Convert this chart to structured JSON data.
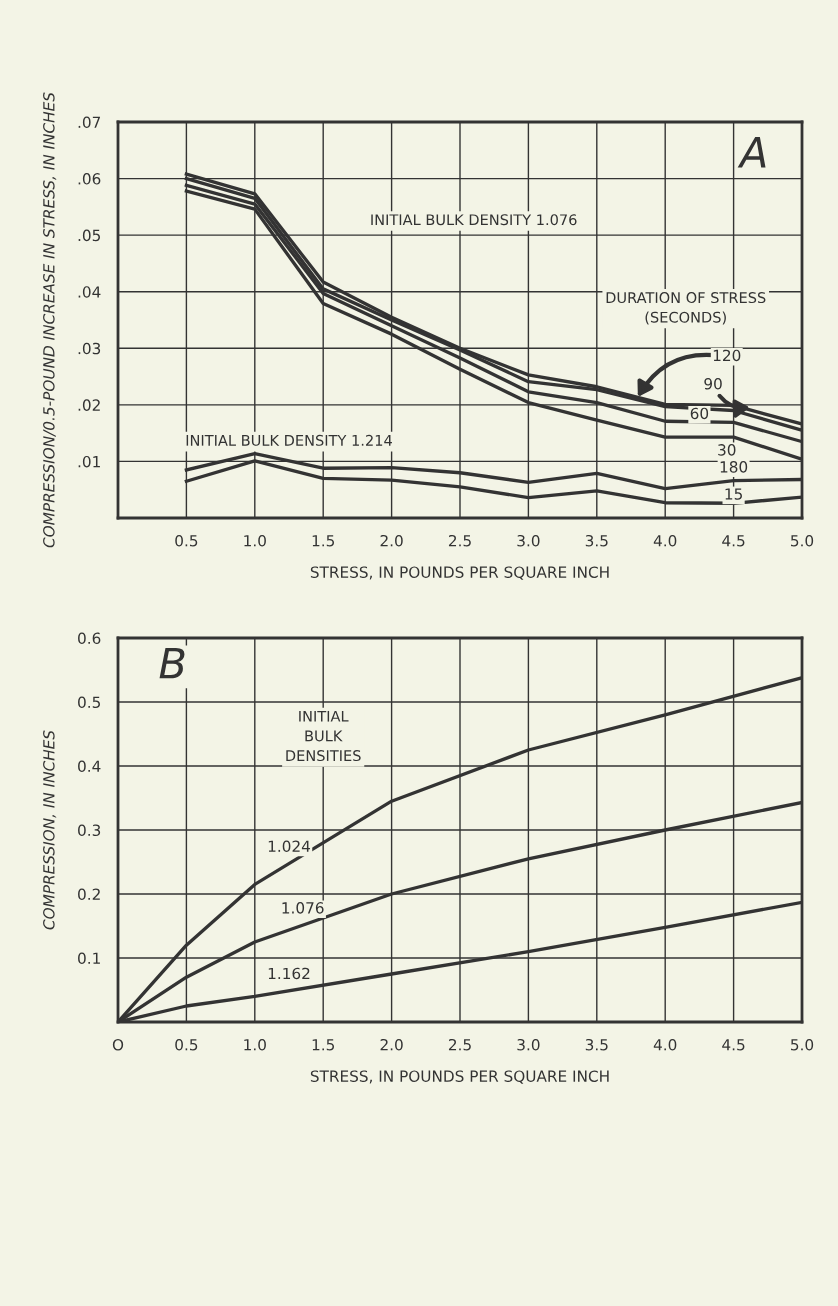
{
  "chart_data": [
    {
      "type": "line",
      "title": "A",
      "xlabel": "STRESS, IN POUNDS PER SQUARE INCH",
      "ylabel": "COMPRESSION/0.5-POUND INCREASE IN STRESS, IN INCHES",
      "x": [
        0.5,
        1.0,
        1.5,
        2.0,
        2.5,
        3.0,
        3.5,
        4.0,
        4.5,
        5.0
      ],
      "series": [
        {
          "name": "120",
          "color": "#333333",
          "values": [
            0.0608,
            0.0573,
            0.0417,
            0.0355,
            0.03,
            0.0253,
            0.0232,
            0.0201,
            0.0199,
            0.0166
          ]
        },
        {
          "name": "90",
          "color": "#333333",
          "values": [
            0.06,
            0.0565,
            0.0405,
            0.035,
            0.0297,
            0.0241,
            0.0227,
            0.0197,
            0.019,
            0.0155
          ]
        },
        {
          "name": "60",
          "color": "#333333",
          "values": [
            0.0588,
            0.0555,
            0.0397,
            0.034,
            0.0283,
            0.0223,
            0.0204,
            0.0171,
            0.0169,
            0.0135
          ]
        },
        {
          "name": "30",
          "color": "#333333",
          "values": [
            0.0578,
            0.0546,
            0.0379,
            0.0325,
            0.0263,
            0.0204,
            0.0173,
            0.0143,
            0.0143,
            0.0104
          ]
        },
        {
          "name": "180",
          "color": "#333333",
          "values": [
            0.0085,
            0.0114,
            0.0088,
            0.0089,
            0.008,
            0.0063,
            0.0079,
            0.0052,
            0.0066,
            0.0068
          ]
        },
        {
          "name": "15",
          "color": "#333333",
          "values": [
            0.0065,
            0.0101,
            0.007,
            0.0067,
            0.0055,
            0.0036,
            0.0048,
            0.0027,
            0.0026,
            0.0037
          ]
        }
      ],
      "annotations": [
        "INITIAL BULK DENSITY 1.076",
        "INITIAL BULK DENSITY 1.214",
        "DURATION OF STRESS\n(SECONDS)"
      ],
      "xlim": [
        0,
        5.0
      ],
      "ylim": [
        0,
        0.07
      ],
      "xticks": [
        {
          "value": 0.5,
          "label": "0.5"
        },
        {
          "value": 1.0,
          "label": "1.0"
        },
        {
          "value": 1.5,
          "label": "1.5"
        },
        {
          "value": 2.0,
          "label": "2.0"
        },
        {
          "value": 2.5,
          "label": "2.5"
        },
        {
          "value": 3.0,
          "label": "3.0"
        },
        {
          "value": 3.5,
          "label": "3.5"
        },
        {
          "value": 4.0,
          "label": "4.0"
        },
        {
          "value": 4.5,
          "label": "4.5"
        },
        {
          "value": 5.0,
          "label": "5.0"
        }
      ],
      "yticks": [
        {
          "value": 0.01,
          "label": ".01"
        },
        {
          "value": 0.02,
          "label": ".02"
        },
        {
          "value": 0.03,
          "label": ".03"
        },
        {
          "value": 0.04,
          "label": ".04"
        },
        {
          "value": 0.05,
          "label": ".05"
        },
        {
          "value": 0.06,
          "label": ".06"
        },
        {
          "value": 0.07,
          "label": ".07"
        }
      ],
      "grid": true,
      "line_style": "solid"
    },
    {
      "type": "line",
      "title": "B",
      "xlabel": "STRESS, IN POUNDS PER SQUARE INCH",
      "ylabel": "COMPRESSION, IN INCHES",
      "x": [
        0,
        0.5,
        1.0,
        2.0,
        3.0,
        4.0,
        5.0
      ],
      "series": [
        {
          "name": "1.024",
          "color": "#333333",
          "values": [
            0,
            0.12,
            0.215,
            0.345,
            0.425,
            0.48,
            0.538
          ]
        },
        {
          "name": "1.076",
          "color": "#333333",
          "values": [
            0,
            0.07,
            0.125,
            0.2,
            0.255,
            0.3,
            0.343
          ]
        },
        {
          "name": "1.162",
          "color": "#333333",
          "values": [
            0,
            0.025,
            0.04,
            0.075,
            0.11,
            0.148,
            0.187
          ]
        }
      ],
      "annotations": [
        "INITIAL\nBULK\nDENSITIES"
      ],
      "xlim": [
        0,
        5.0
      ],
      "ylim": [
        0,
        0.6
      ],
      "xticks": [
        {
          "value": 0,
          "label": "O"
        },
        {
          "value": 0.5,
          "label": "0.5"
        },
        {
          "value": 1.0,
          "label": "1.0"
        },
        {
          "value": 1.5,
          "label": "1.5"
        },
        {
          "value": 2.0,
          "label": "2.0"
        },
        {
          "value": 2.5,
          "label": "2.5"
        },
        {
          "value": 3.0,
          "label": "3.0"
        },
        {
          "value": 3.5,
          "label": "3.5"
        },
        {
          "value": 4.0,
          "label": "4.0"
        },
        {
          "value": 4.5,
          "label": "4.5"
        },
        {
          "value": 5.0,
          "label": "5.0"
        }
      ],
      "yticks": [
        0.1,
        0.2,
        0.3,
        0.4,
        0.5,
        0.6
      ],
      "grid": true,
      "line_style": "solid"
    }
  ]
}
